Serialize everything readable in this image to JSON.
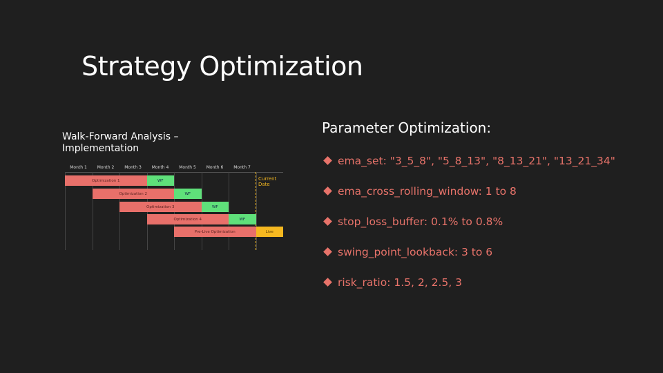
{
  "title": "Strategy Optimization",
  "diagram": {
    "title": "Walk-Forward Analysis – Implementation",
    "months": [
      "Month 1",
      "Month 2",
      "Month 3",
      "Month 4",
      "Month 5",
      "Month 6",
      "Month 7"
    ],
    "rows": [
      {
        "label": "Optimization 1",
        "phase": "WF"
      },
      {
        "label": "Optimization 2",
        "phase": "WF"
      },
      {
        "label": "Optimization 3",
        "phase": "WF"
      },
      {
        "label": "Optimization 4",
        "phase": "WF"
      },
      {
        "label": "Pre-Live Optimization",
        "phase": "Live"
      }
    ],
    "current_date": "Current Date"
  },
  "parameters": {
    "heading": "Parameter Optimization:",
    "items": [
      "ema_set: \"3_5_8\", \"5_8_13\", \"8_13_21\", \"13_21_34\"",
      "ema_cross_rolling_window: 1 to 8",
      "stop_loss_buffer: 0.1% to 0.8%",
      "swing_point_lookback: 3 to 6",
      "risk_ratio: 1.5, 2, 2.5, 3"
    ]
  }
}
